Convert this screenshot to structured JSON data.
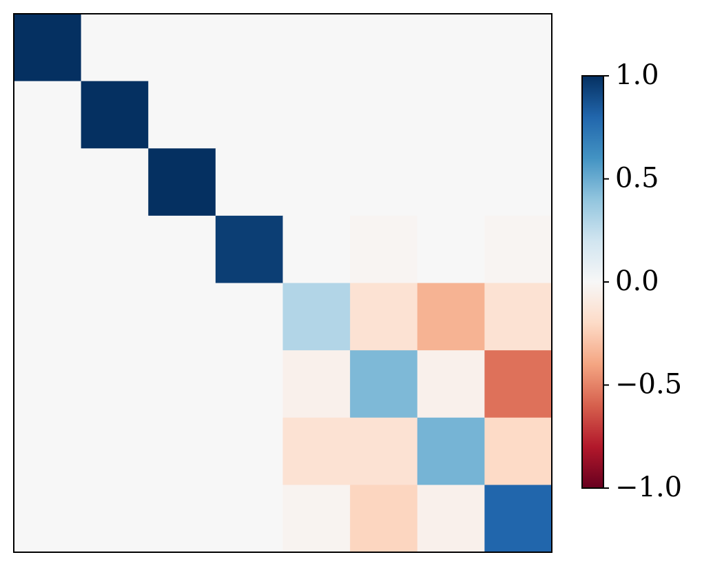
{
  "chart_data": {
    "type": "heatmap",
    "colormap": "RdBu",
    "z": [
      [
        1.0,
        0,
        0,
        0,
        0,
        0,
        0,
        0
      ],
      [
        0,
        1.0,
        0,
        0,
        0,
        0,
        0,
        0
      ],
      [
        0,
        0,
        1.0,
        0,
        0,
        0,
        0,
        0
      ],
      [
        0,
        0,
        0,
        0.95,
        0,
        -0.02,
        0,
        -0.02
      ],
      [
        0,
        0,
        0,
        0,
        0.3,
        -0.15,
        -0.35,
        -0.15
      ],
      [
        0,
        0,
        0,
        0,
        -0.05,
        0.45,
        -0.05,
        -0.55
      ],
      [
        0,
        0,
        0,
        0,
        -0.15,
        -0.15,
        0.47,
        -0.2
      ],
      [
        0,
        0,
        0,
        0,
        -0.03,
        -0.22,
        -0.05,
        0.8
      ]
    ],
    "clim": [
      -1,
      1
    ],
    "cticks": [
      {
        "value": -1,
        "label": "−1.0"
      },
      {
        "value": -0.5,
        "label": "−0.5"
      },
      {
        "value": 0,
        "label": "0.0"
      },
      {
        "value": 0.5,
        "label": "0.5"
      },
      {
        "value": 1,
        "label": "1.0"
      }
    ]
  }
}
